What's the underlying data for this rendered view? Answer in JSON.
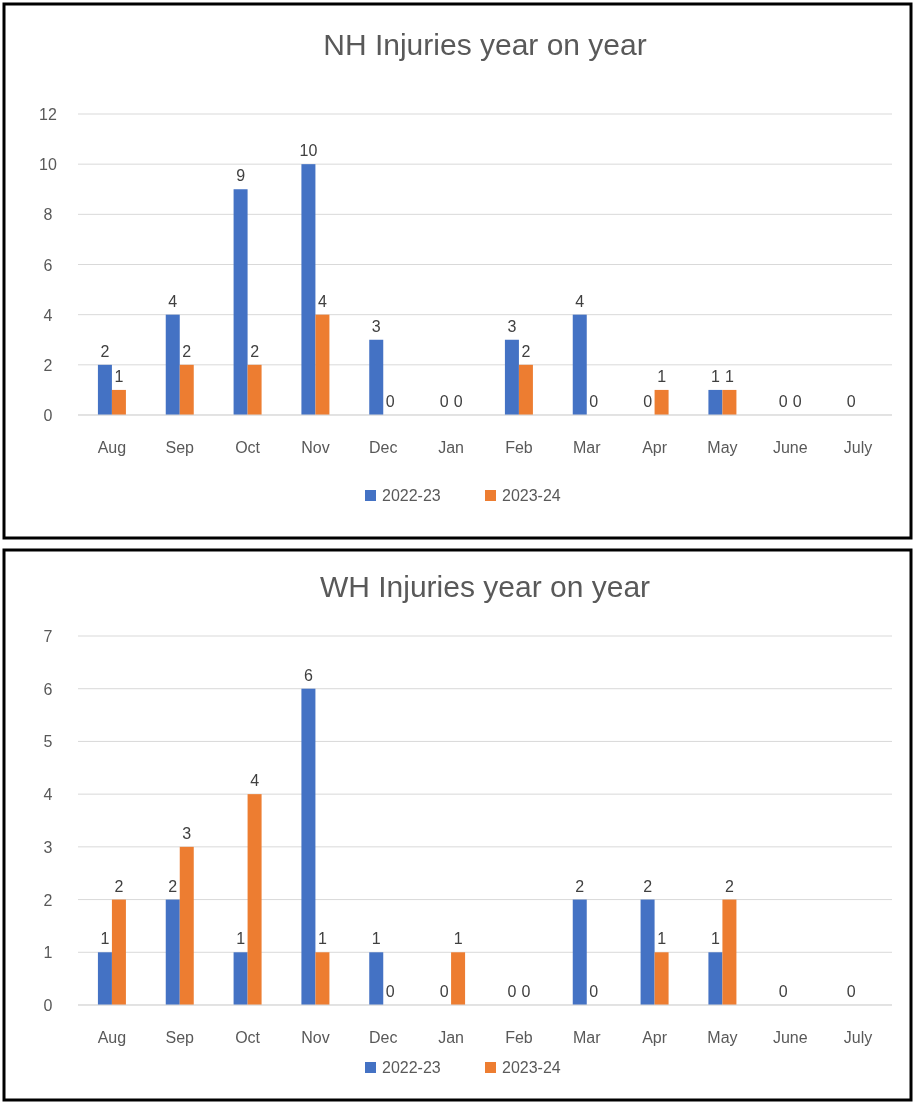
{
  "chart_data": [
    {
      "type": "bar",
      "title": "NH Injuries year on year",
      "categories": [
        "Aug",
        "Sep",
        "Oct",
        "Nov",
        "Dec",
        "Jan",
        "Feb",
        "Mar",
        "Apr",
        "May",
        "June",
        "July"
      ],
      "series": [
        {
          "name": "2022-23",
          "color": "#4472c4",
          "values": [
            2,
            4,
            9,
            10,
            3,
            0,
            3,
            4,
            0,
            1,
            0,
            0
          ]
        },
        {
          "name": "2023-24",
          "color": "#ed7d31",
          "values": [
            1,
            2,
            2,
            4,
            0,
            0,
            2,
            0,
            1,
            1,
            0,
            null
          ]
        }
      ],
      "ylim": [
        0,
        12
      ],
      "yticks": [
        0,
        2,
        4,
        6,
        8,
        10,
        12
      ],
      "grid": "y",
      "legend": "bottom",
      "data_labels": true
    },
    {
      "type": "bar",
      "title": "WH Injuries year on year",
      "categories": [
        "Aug",
        "Sep",
        "Oct",
        "Nov",
        "Dec",
        "Jan",
        "Feb",
        "Mar",
        "Apr",
        "May",
        "June",
        "July"
      ],
      "series": [
        {
          "name": "2022-23",
          "color": "#4472c4",
          "values": [
            1,
            2,
            1,
            6,
            1,
            0,
            0,
            2,
            2,
            1,
            0,
            0
          ]
        },
        {
          "name": "2023-24",
          "color": "#ed7d31",
          "values": [
            2,
            3,
            4,
            1,
            0,
            1,
            0,
            0,
            1,
            2,
            null,
            null
          ]
        }
      ],
      "ylim": [
        0,
        7
      ],
      "yticks": [
        0,
        1,
        2,
        3,
        4,
        5,
        6,
        7
      ],
      "grid": "y",
      "legend": "bottom",
      "data_labels": true
    }
  ]
}
